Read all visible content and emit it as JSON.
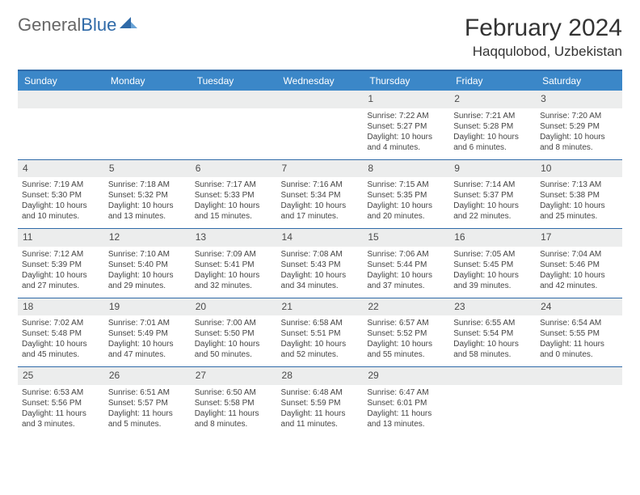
{
  "logo": {
    "general": "General",
    "blue": "Blue"
  },
  "header": {
    "title": "February 2024",
    "location": "Haqqulobod, Uzbekistan"
  },
  "colors": {
    "brand": "#3b87c8",
    "brand_dark": "#2f6aa8",
    "row_bg": "#eceded"
  },
  "weekday_labels": [
    "Sunday",
    "Monday",
    "Tuesday",
    "Wednesday",
    "Thursday",
    "Friday",
    "Saturday"
  ],
  "weeks": [
    {
      "nums": [
        "",
        "",
        "",
        "",
        "1",
        "2",
        "3"
      ],
      "cells": [
        null,
        null,
        null,
        null,
        {
          "sunrise": "Sunrise: 7:22 AM",
          "sunset": "Sunset: 5:27 PM",
          "d1": "Daylight: 10 hours",
          "d2": "and 4 minutes."
        },
        {
          "sunrise": "Sunrise: 7:21 AM",
          "sunset": "Sunset: 5:28 PM",
          "d1": "Daylight: 10 hours",
          "d2": "and 6 minutes."
        },
        {
          "sunrise": "Sunrise: 7:20 AM",
          "sunset": "Sunset: 5:29 PM",
          "d1": "Daylight: 10 hours",
          "d2": "and 8 minutes."
        }
      ]
    },
    {
      "nums": [
        "4",
        "5",
        "6",
        "7",
        "8",
        "9",
        "10"
      ],
      "cells": [
        {
          "sunrise": "Sunrise: 7:19 AM",
          "sunset": "Sunset: 5:30 PM",
          "d1": "Daylight: 10 hours",
          "d2": "and 10 minutes."
        },
        {
          "sunrise": "Sunrise: 7:18 AM",
          "sunset": "Sunset: 5:32 PM",
          "d1": "Daylight: 10 hours",
          "d2": "and 13 minutes."
        },
        {
          "sunrise": "Sunrise: 7:17 AM",
          "sunset": "Sunset: 5:33 PM",
          "d1": "Daylight: 10 hours",
          "d2": "and 15 minutes."
        },
        {
          "sunrise": "Sunrise: 7:16 AM",
          "sunset": "Sunset: 5:34 PM",
          "d1": "Daylight: 10 hours",
          "d2": "and 17 minutes."
        },
        {
          "sunrise": "Sunrise: 7:15 AM",
          "sunset": "Sunset: 5:35 PM",
          "d1": "Daylight: 10 hours",
          "d2": "and 20 minutes."
        },
        {
          "sunrise": "Sunrise: 7:14 AM",
          "sunset": "Sunset: 5:37 PM",
          "d1": "Daylight: 10 hours",
          "d2": "and 22 minutes."
        },
        {
          "sunrise": "Sunrise: 7:13 AM",
          "sunset": "Sunset: 5:38 PM",
          "d1": "Daylight: 10 hours",
          "d2": "and 25 minutes."
        }
      ]
    },
    {
      "nums": [
        "11",
        "12",
        "13",
        "14",
        "15",
        "16",
        "17"
      ],
      "cells": [
        {
          "sunrise": "Sunrise: 7:12 AM",
          "sunset": "Sunset: 5:39 PM",
          "d1": "Daylight: 10 hours",
          "d2": "and 27 minutes."
        },
        {
          "sunrise": "Sunrise: 7:10 AM",
          "sunset": "Sunset: 5:40 PM",
          "d1": "Daylight: 10 hours",
          "d2": "and 29 minutes."
        },
        {
          "sunrise": "Sunrise: 7:09 AM",
          "sunset": "Sunset: 5:41 PM",
          "d1": "Daylight: 10 hours",
          "d2": "and 32 minutes."
        },
        {
          "sunrise": "Sunrise: 7:08 AM",
          "sunset": "Sunset: 5:43 PM",
          "d1": "Daylight: 10 hours",
          "d2": "and 34 minutes."
        },
        {
          "sunrise": "Sunrise: 7:06 AM",
          "sunset": "Sunset: 5:44 PM",
          "d1": "Daylight: 10 hours",
          "d2": "and 37 minutes."
        },
        {
          "sunrise": "Sunrise: 7:05 AM",
          "sunset": "Sunset: 5:45 PM",
          "d1": "Daylight: 10 hours",
          "d2": "and 39 minutes."
        },
        {
          "sunrise": "Sunrise: 7:04 AM",
          "sunset": "Sunset: 5:46 PM",
          "d1": "Daylight: 10 hours",
          "d2": "and 42 minutes."
        }
      ]
    },
    {
      "nums": [
        "18",
        "19",
        "20",
        "21",
        "22",
        "23",
        "24"
      ],
      "cells": [
        {
          "sunrise": "Sunrise: 7:02 AM",
          "sunset": "Sunset: 5:48 PM",
          "d1": "Daylight: 10 hours",
          "d2": "and 45 minutes."
        },
        {
          "sunrise": "Sunrise: 7:01 AM",
          "sunset": "Sunset: 5:49 PM",
          "d1": "Daylight: 10 hours",
          "d2": "and 47 minutes."
        },
        {
          "sunrise": "Sunrise: 7:00 AM",
          "sunset": "Sunset: 5:50 PM",
          "d1": "Daylight: 10 hours",
          "d2": "and 50 minutes."
        },
        {
          "sunrise": "Sunrise: 6:58 AM",
          "sunset": "Sunset: 5:51 PM",
          "d1": "Daylight: 10 hours",
          "d2": "and 52 minutes."
        },
        {
          "sunrise": "Sunrise: 6:57 AM",
          "sunset": "Sunset: 5:52 PM",
          "d1": "Daylight: 10 hours",
          "d2": "and 55 minutes."
        },
        {
          "sunrise": "Sunrise: 6:55 AM",
          "sunset": "Sunset: 5:54 PM",
          "d1": "Daylight: 10 hours",
          "d2": "and 58 minutes."
        },
        {
          "sunrise": "Sunrise: 6:54 AM",
          "sunset": "Sunset: 5:55 PM",
          "d1": "Daylight: 11 hours",
          "d2": "and 0 minutes."
        }
      ]
    },
    {
      "nums": [
        "25",
        "26",
        "27",
        "28",
        "29",
        "",
        ""
      ],
      "cells": [
        {
          "sunrise": "Sunrise: 6:53 AM",
          "sunset": "Sunset: 5:56 PM",
          "d1": "Daylight: 11 hours",
          "d2": "and 3 minutes."
        },
        {
          "sunrise": "Sunrise: 6:51 AM",
          "sunset": "Sunset: 5:57 PM",
          "d1": "Daylight: 11 hours",
          "d2": "and 5 minutes."
        },
        {
          "sunrise": "Sunrise: 6:50 AM",
          "sunset": "Sunset: 5:58 PM",
          "d1": "Daylight: 11 hours",
          "d2": "and 8 minutes."
        },
        {
          "sunrise": "Sunrise: 6:48 AM",
          "sunset": "Sunset: 5:59 PM",
          "d1": "Daylight: 11 hours",
          "d2": "and 11 minutes."
        },
        {
          "sunrise": "Sunrise: 6:47 AM",
          "sunset": "Sunset: 6:01 PM",
          "d1": "Daylight: 11 hours",
          "d2": "and 13 minutes."
        },
        null,
        null
      ]
    }
  ]
}
